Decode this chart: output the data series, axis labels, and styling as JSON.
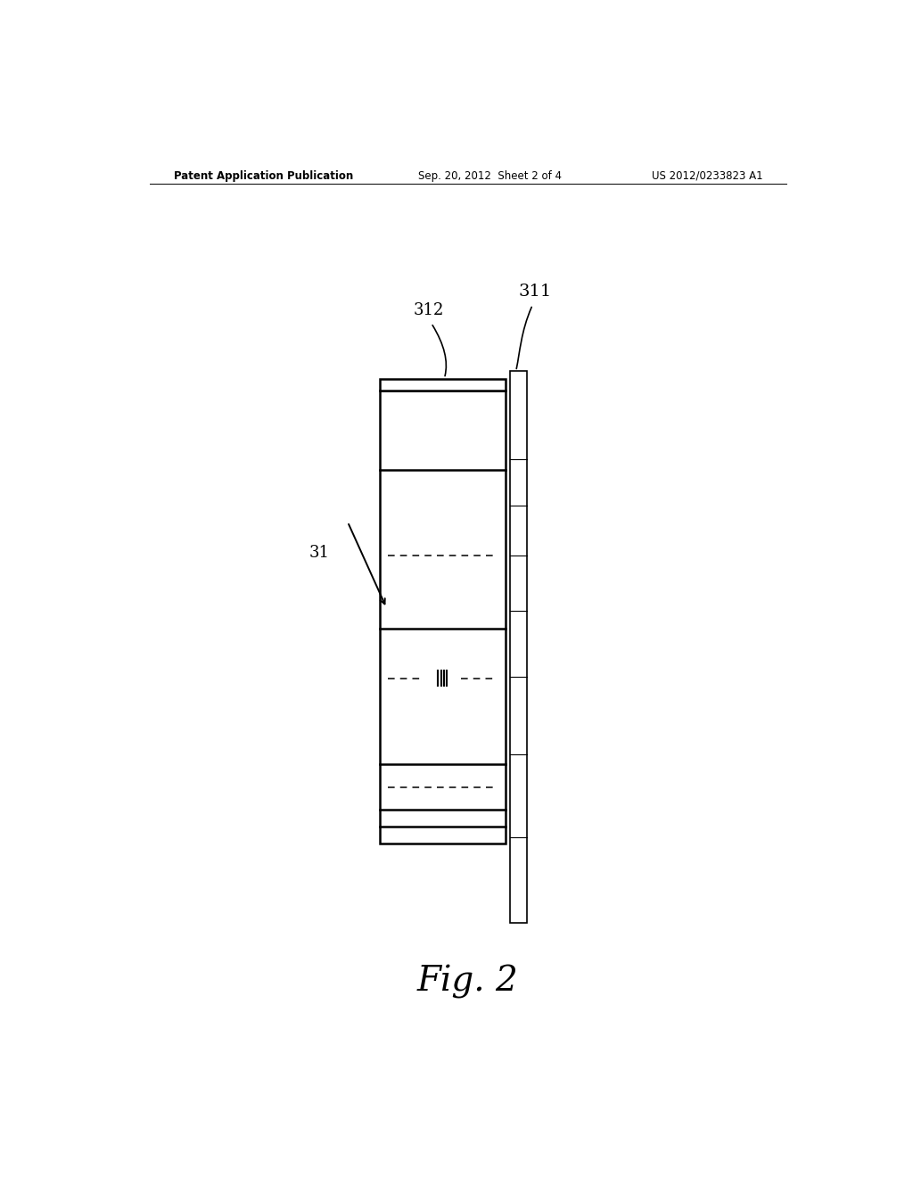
{
  "bg_color": "#ffffff",
  "line_color": "#000000",
  "header_left": "Patent Application Publication",
  "header_center": "Sep. 20, 2012  Sheet 2 of 4",
  "header_right": "US 2012/0233823 A1",
  "fig_label": "Fig. 2",
  "label_31": "31",
  "label_311": "311",
  "label_312": "312"
}
